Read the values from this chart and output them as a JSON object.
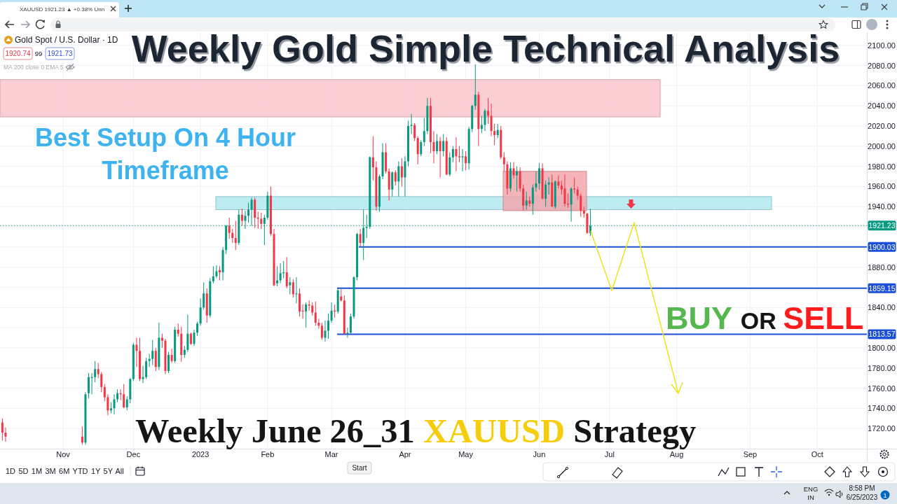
{
  "chart_data": {
    "type": "candlestick",
    "title": "Weekly Gold Simple Technical Analysis",
    "subtitle": "Weekly June 26_31 XAUUSD Strategy",
    "categories": [
      null,
      null,
      null,
      null,
      null,
      null,
      null,
      null,
      null,
      null,
      null,
      null,
      null,
      null,
      null,
      null,
      null,
      null,
      null,
      "Nov",
      null,
      null,
      null,
      null,
      null,
      null,
      null,
      null,
      null,
      null,
      null,
      null,
      null,
      null,
      null,
      null,
      null,
      null,
      null,
      null,
      null,
      "Dec",
      null,
      null,
      null,
      null,
      null,
      null,
      null,
      null,
      null,
      null,
      null,
      null,
      null,
      null,
      null,
      null,
      null,
      null,
      null,
      null,
      "2023",
      null,
      null,
      null,
      null,
      null,
      null,
      null,
      null,
      null,
      null,
      null,
      null,
      null,
      null,
      null,
      null,
      null,
      null,
      null,
      null,
      "Feb",
      null,
      null,
      null,
      null,
      null,
      null,
      null,
      null,
      null,
      null,
      null,
      null,
      null,
      null,
      null,
      null,
      null,
      null,
      null,
      "Mar",
      null,
      null,
      null,
      null,
      null,
      null,
      null,
      null,
      null,
      null,
      null,
      null,
      null,
      null,
      null,
      null,
      null,
      null,
      null,
      null,
      null,
      null,
      "Apr",
      null,
      null,
      null,
      null,
      null,
      null,
      null,
      null,
      null,
      null,
      null,
      null,
      null,
      null,
      null,
      null,
      null,
      null,
      "May",
      null,
      null,
      null,
      null,
      null,
      null,
      null,
      null,
      null,
      null,
      null,
      null,
      null,
      null,
      null,
      null,
      null,
      null,
      null,
      null,
      null,
      null,
      "Jun",
      null,
      null,
      null,
      null,
      null,
      null,
      null,
      null,
      null,
      null,
      null,
      null,
      null,
      null,
      null,
      null,
      null,
      null,
      null,
      null,
      null,
      "Jul",
      null,
      null,
      null,
      null,
      null,
      null,
      null,
      null,
      null,
      null,
      null,
      null,
      null,
      null,
      null,
      null,
      null,
      null,
      null,
      null,
      "Aug",
      null,
      null,
      null,
      null,
      null,
      null,
      null,
      null,
      null,
      null,
      null,
      null,
      null,
      null,
      null,
      null,
      null,
      null,
      null,
      null,
      null,
      null,
      "Sep",
      null,
      null,
      null,
      null,
      null,
      null,
      null,
      null,
      null,
      null,
      null,
      null,
      null,
      null,
      null,
      null,
      null,
      null,
      null,
      null,
      "Oct",
      null,
      null,
      null,
      null,
      null,
      null,
      null,
      null,
      null,
      null,
      null,
      null,
      null,
      null,
      null
    ],
    "ohlc": [
      [
        1726,
        1730,
        1708,
        1716
      ],
      [
        1716,
        1721,
        1707,
        1712
      ],
      null,
      null,
      null,
      null,
      null,
      null,
      null,
      null,
      null,
      null,
      null,
      null,
      null,
      null,
      null,
      null,
      null,
      null,
      null,
      null,
      null,
      null,
      null,
      [
        1712,
        1722,
        1704,
        1706
      ],
      [
        1706,
        1756,
        1704,
        1754
      ],
      [
        1755,
        1775,
        1750,
        1771
      ],
      [
        1770,
        1775,
        1754,
        1771
      ],
      [
        1771,
        1787,
        1766,
        1779
      ],
      [
        1779,
        1785,
        1770,
        1774
      ],
      [
        1774,
        1776,
        1756,
        1761
      ],
      [
        1761,
        1764,
        1747,
        1751
      ],
      [
        1751,
        1754,
        1733,
        1738
      ],
      [
        1738,
        1746,
        1735,
        1740
      ],
      [
        1740,
        1754,
        1734,
        1749
      ],
      [
        1749,
        1759,
        1746,
        1755
      ],
      [
        1755,
        1759,
        1748,
        1754
      ],
      [
        1754,
        1764,
        1740,
        1741
      ],
      [
        1741,
        1752,
        1738,
        1749
      ],
      [
        1749,
        1770,
        1745,
        1769
      ],
      [
        1769,
        1805,
        1767,
        1803
      ],
      [
        1803,
        1810,
        1781,
        1797
      ],
      [
        1797,
        1810,
        1767,
        1769
      ],
      [
        1769,
        1782,
        1765,
        1771
      ],
      [
        1771,
        1790,
        1769,
        1787
      ],
      [
        1787,
        1794,
        1781,
        1789
      ],
      [
        1789,
        1808,
        1783,
        1797
      ],
      [
        1797,
        1800,
        1777,
        1781
      ],
      [
        1781,
        1825,
        1778,
        1810
      ],
      [
        1810,
        1814,
        1800,
        1807
      ],
      [
        1807,
        1809,
        1774,
        1777
      ],
      [
        1777,
        1796,
        1775,
        1793
      ],
      [
        1793,
        1799,
        1785,
        1787
      ],
      [
        1787,
        1821,
        1785,
        1818
      ],
      [
        1818,
        1824,
        1811,
        1814
      ],
      [
        1814,
        1821,
        1786,
        1793
      ],
      [
        1793,
        1802,
        1790,
        1798
      ],
      [
        1798,
        1833,
        1796,
        1814
      ],
      [
        1814,
        1815,
        1803,
        1804
      ],
      [
        1804,
        1818,
        1802,
        1815
      ],
      [
        1815,
        1826,
        1812,
        1824
      ],
      [
        1824,
        1849,
        1822,
        1840
      ],
      [
        1840,
        1865,
        1838,
        1854
      ],
      [
        1854,
        1859,
        1825,
        1832
      ],
      [
        1832,
        1869,
        1830,
        1866
      ],
      [
        1866,
        1881,
        1864,
        1871
      ],
      [
        1871,
        1882,
        1869,
        1876
      ],
      [
        1877,
        1881,
        1867,
        1875
      ],
      [
        1875,
        1900,
        1867,
        1897
      ],
      [
        1897,
        1922,
        1893,
        1921
      ],
      [
        1921,
        1929,
        1908,
        1914
      ],
      [
        1914,
        1918,
        1904,
        1909
      ],
      [
        1909,
        1926,
        1897,
        1904
      ],
      [
        1904,
        1937,
        1902,
        1932
      ],
      [
        1932,
        1938,
        1921,
        1926
      ],
      [
        1926,
        1936,
        1918,
        1931
      ],
      [
        1931,
        1944,
        1924,
        1937
      ],
      [
        1937,
        1949,
        1921,
        1947
      ],
      [
        1947,
        1949,
        1919,
        1929
      ],
      [
        1929,
        1935,
        1918,
        1928
      ],
      [
        1928,
        1934,
        1918,
        1923
      ],
      [
        1923,
        1932,
        1902,
        1929
      ],
      [
        1929,
        1955,
        1927,
        1951
      ],
      [
        1951,
        1960,
        1911,
        1913
      ],
      [
        1913,
        1918,
        1861,
        1862
      ],
      [
        1864,
        1881,
        1861,
        1867
      ],
      [
        1867,
        1884,
        1864,
        1874
      ],
      [
        1874,
        1886,
        1869,
        1875
      ],
      [
        1875,
        1890,
        1859,
        1861
      ],
      [
        1862,
        1870,
        1853,
        1865
      ],
      [
        1865,
        1868,
        1850,
        1853
      ],
      [
        1853,
        1870,
        1844,
        1854
      ],
      [
        1854,
        1859,
        1831,
        1836
      ],
      [
        1837,
        1843,
        1829,
        1836
      ],
      [
        1836,
        1845,
        1820,
        1843
      ],
      [
        1843,
        1847,
        1837,
        1842
      ],
      [
        1842,
        1845,
        1832,
        1835
      ],
      [
        1835,
        1846,
        1822,
        1825
      ],
      [
        1825,
        1829,
        1819,
        1822
      ],
      [
        1822,
        1825,
        1808,
        1810
      ],
      [
        1810,
        1827,
        1806,
        1817
      ],
      [
        1817,
        1834,
        1809,
        1827
      ],
      [
        1827,
        1845,
        1825,
        1837
      ],
      [
        1837,
        1843,
        1830,
        1836
      ],
      [
        1836,
        1859,
        1834,
        1857
      ],
      [
        1851,
        1858,
        1846,
        1847
      ],
      [
        1847,
        1852,
        1813,
        1814
      ],
      [
        1814,
        1820,
        1810,
        1815
      ],
      [
        1815,
        1834,
        1813,
        1831
      ],
      [
        1831,
        1871,
        1829,
        1870
      ],
      [
        1870,
        1914,
        1867,
        1913
      ],
      [
        1913,
        1918,
        1900,
        1904
      ],
      [
        1904,
        1937,
        1887,
        1919
      ],
      [
        1919,
        1932,
        1909,
        1920
      ],
      [
        1920,
        1990,
        1918,
        1989
      ],
      [
        1989,
        2010,
        1966,
        1979
      ],
      [
        1979,
        1985,
        1936,
        1940
      ],
      [
        1940,
        1972,
        1935,
        1970
      ],
      [
        1970,
        2003,
        1967,
        1994
      ],
      [
        1994,
        2003,
        1973,
        1975
      ],
      [
        1975,
        1978,
        1946,
        1957
      ],
      [
        1957,
        1975,
        1950,
        1974
      ],
      [
        1974,
        1976,
        1961,
        1965
      ],
      [
        1965,
        1985,
        1950,
        1980
      ],
      [
        1980,
        1988,
        1960,
        1969
      ],
      [
        1969,
        1990,
        1950,
        1985
      ],
      [
        1985,
        2025,
        1980,
        2020
      ],
      [
        2020,
        2032,
        2012,
        2021
      ],
      [
        2021,
        2023,
        2005,
        2008
      ],
      [
        2008,
        2010,
        1982,
        1992
      ],
      [
        1992,
        2006,
        1990,
        2004
      ],
      [
        2004,
        2028,
        2000,
        2015
      ],
      [
        2015,
        2048,
        2012,
        2040
      ],
      [
        2040,
        2048,
        1993,
        2004
      ],
      [
        2004,
        2015,
        1983,
        1995
      ],
      [
        1995,
        2012,
        1992,
        2005
      ],
      [
        2005,
        2009,
        1969,
        1995
      ],
      [
        1995,
        2012,
        1990,
        2005
      ],
      [
        2005,
        2009,
        1971,
        1972
      ],
      [
        1972,
        1994,
        1970,
        1989
      ],
      [
        1989,
        2000,
        1984,
        1997
      ],
      [
        1997,
        2009,
        1975,
        1990
      ],
      [
        1990,
        2000,
        1984,
        1989
      ],
      [
        1989,
        1997,
        1975,
        1990
      ],
      [
        1990,
        1995,
        1976,
        1983
      ],
      [
        1983,
        2019,
        1977,
        2017
      ],
      [
        2017,
        2041,
        2014,
        2040
      ],
      [
        2040,
        2081,
        2036,
        2051
      ],
      [
        2051,
        2054,
        2000,
        2017
      ],
      [
        2017,
        2030,
        2013,
        2021
      ],
      [
        2021,
        2037,
        2015,
        2035
      ],
      [
        2035,
        2048,
        2022,
        2030
      ],
      [
        2030,
        2042,
        2010,
        2015
      ],
      [
        2015,
        2022,
        2001,
        2011
      ],
      [
        2011,
        2022,
        2008,
        2016
      ],
      [
        2016,
        2020,
        1987,
        1989
      ],
      [
        1989,
        1994,
        1975,
        1982
      ],
      [
        1982,
        1985,
        1952,
        1958
      ],
      [
        1958,
        1984,
        1955,
        1978
      ],
      [
        1978,
        1984,
        1968,
        1971
      ],
      [
        1971,
        1980,
        1955,
        1975
      ],
      [
        1975,
        1979,
        1955,
        1958
      ],
      [
        1958,
        1962,
        1936,
        1941
      ],
      [
        1941,
        1955,
        1937,
        1946
      ],
      [
        1946,
        1950,
        1940,
        1943
      ],
      [
        1943,
        1962,
        1932,
        1959
      ],
      [
        1959,
        1975,
        1955,
        1963
      ],
      [
        1963,
        1983,
        1957,
        1978
      ],
      [
        1978,
        1983,
        1947,
        1948
      ],
      [
        1948,
        1966,
        1940,
        1962
      ],
      [
        1962,
        1969,
        1952,
        1964
      ],
      [
        1964,
        1972,
        1940,
        1940
      ],
      [
        1940,
        1966,
        1938,
        1965
      ],
      [
        1965,
        1971,
        1958,
        1961
      ],
      [
        1961,
        1966,
        1952,
        1957
      ],
      [
        1958,
        1972,
        1940,
        1943
      ],
      [
        1943,
        1953,
        1939,
        1942
      ],
      [
        1942,
        1959,
        1925,
        1958
      ],
      [
        1958,
        1969,
        1953,
        1957
      ],
      [
        1957,
        1960,
        1947,
        1951
      ],
      [
        1951,
        1953,
        1930,
        1936
      ],
      [
        1936,
        1940,
        1929,
        1933
      ],
      [
        1933,
        1934,
        1913,
        1914
      ],
      [
        1914,
        1938,
        1911,
        1921
      ],
      null,
      null,
      null,
      null,
      null,
      null,
      null,
      null,
      null,
      null,
      null,
      null,
      null,
      null,
      null,
      null,
      null,
      null,
      null,
      null,
      null,
      null,
      null,
      null,
      null,
      null,
      null,
      null,
      null,
      null,
      null,
      null,
      null,
      null,
      null,
      null,
      null,
      null,
      null,
      null,
      null,
      null,
      null,
      null,
      null,
      null,
      null,
      null,
      null,
      null,
      null,
      null,
      null,
      null,
      null,
      null,
      null,
      null,
      null,
      null,
      null,
      null,
      null,
      null,
      null,
      null,
      null,
      null,
      null,
      null,
      null,
      null,
      null,
      null,
      null,
      null,
      null,
      null,
      null,
      null,
      null,
      null,
      null,
      null,
      null,
      null
    ],
    "ylim": [
      1700,
      2113
    ],
    "yticks": [
      {
        "value": 1720,
        "label": "1720.00"
      },
      {
        "value": 1740,
        "label": "1740.00"
      },
      {
        "value": 1760,
        "label": "1760.00"
      },
      {
        "value": 1780,
        "label": "1780.00"
      },
      {
        "value": 1800,
        "label": "1800.00"
      },
      {
        "value": 1820,
        "label": null
      },
      {
        "value": 1840,
        "label": "1840.00"
      },
      {
        "value": 1860,
        "label": null
      },
      {
        "value": 1880,
        "label": "1880.00"
      },
      {
        "value": 1900,
        "label": null
      },
      {
        "value": 1920,
        "label": null
      },
      {
        "value": 1940,
        "label": "1940.00"
      },
      {
        "value": 1960,
        "label": "1960.00"
      },
      {
        "value": 1980,
        "label": "1980.00"
      },
      {
        "value": 2000,
        "label": "2000.00"
      },
      {
        "value": 2020,
        "label": "2020.00"
      },
      {
        "value": 2040,
        "label": "2040.00"
      },
      {
        "value": 2060,
        "label": "2060.00"
      },
      {
        "value": 2080,
        "label": "2080.00"
      },
      {
        "value": 2100,
        "label": "2100.00"
      }
    ],
    "grid": true,
    "ref_lines": [
      {
        "axis": "y",
        "value": 1921.23,
        "label": "1921.23",
        "color": "#089981",
        "line_style": "dotted"
      },
      {
        "axis": "y",
        "value": 1900.03,
        "label": "1900.03",
        "color": "#1b4fd8"
      },
      {
        "axis": "y",
        "value": 1859.15,
        "label": "1859.15",
        "color": "#1b4fd8"
      },
      {
        "axis": "y",
        "value": 1813.57,
        "label": "1813.57",
        "color": "#1b4fd8"
      }
    ],
    "bands": [
      {
        "axis": "y",
        "from": 2029,
        "to": 2066,
        "color": "#f9c6cb"
      },
      {
        "axis": "y",
        "from": 1937,
        "to": 1950,
        "color": "#b2e7f0"
      },
      {
        "axis": "y",
        "from": 1936,
        "to": 1975,
        "color": "#f2a7ae"
      }
    ],
    "annotations": [
      "Best Setup On 4 Hour Timeframe",
      "BUY OR SELL",
      "Gold Spot / U.S. Dollar · 1D",
      "1920.74",
      "99",
      "1921.73",
      "MA 200 close 0 EMA 5",
      "XAUUSD 1921.23 ▲ +0.38% Unn",
      "1D 5D 1M 3M 6M YTD 1Y 5Y All",
      "Start",
      "ENG",
      "IN",
      "8:58 PM",
      "6/25/2023",
      "1"
    ]
  }
}
